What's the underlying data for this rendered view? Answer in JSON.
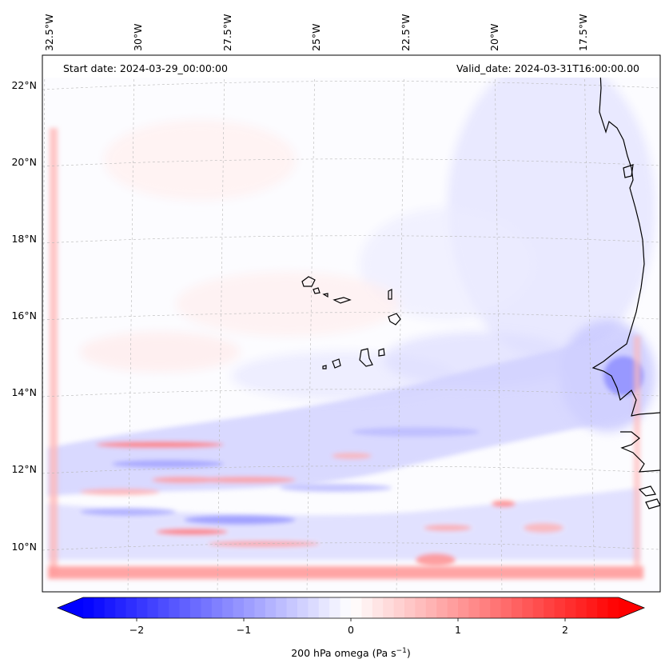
{
  "header": {
    "start_date": "Start date: 2024-03-29_00:00:00",
    "valid_date": "Valid_date: 2024-03-31T16:00:00.00"
  },
  "map": {
    "lon_labels": [
      "32.5°W",
      "30°W",
      "27.5°W",
      "25°W",
      "22.5°W",
      "20°W",
      "17.5°W"
    ],
    "lat_labels": [
      "22°N",
      "20°N",
      "18°N",
      "16°N",
      "14°N",
      "12°N",
      "10°N"
    ],
    "field": "200 hPa omega",
    "colormap": "bwr",
    "colors": {
      "negative": "#0000ff",
      "zero": "#ffffff",
      "positive": "#ff0000"
    }
  },
  "colorbar": {
    "min": -2.5,
    "max": 2.5,
    "ticks": [
      {
        "value": -2,
        "label": "−2"
      },
      {
        "value": -1,
        "label": "−1"
      },
      {
        "value": 0,
        "label": "0"
      },
      {
        "value": 1,
        "label": "1"
      },
      {
        "value": 2,
        "label": "2"
      }
    ],
    "label": "200 hPa omega (Pa s",
    "label_sup": "−1",
    "label_close": ")"
  }
}
